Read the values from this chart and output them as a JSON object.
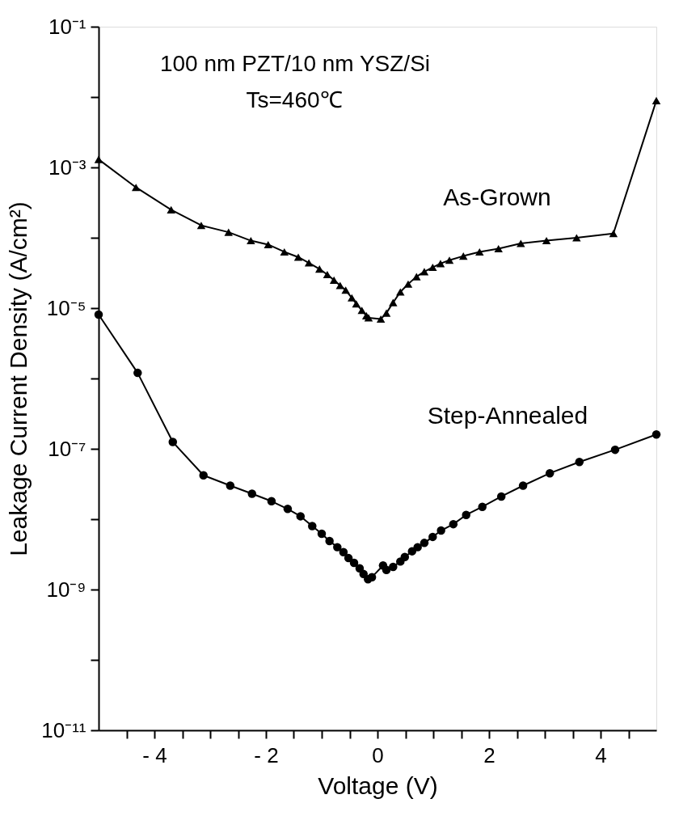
{
  "chart_data": {
    "type": "line",
    "xlabel": "Voltage  (V)",
    "ylabel": "Leakage  Current  Density  (A/cm²)",
    "annotations": [
      "100 nm PZT/10 nm YSZ/Si",
      "Ts=460℃"
    ],
    "log": "y",
    "grid": false,
    "legend": false,
    "line_style": "solid",
    "xlim": [
      -5,
      5
    ],
    "xticks": [
      {
        "value": -4.5,
        "label": null
      },
      {
        "value": -4,
        "label": "- 4"
      },
      {
        "value": -3.5,
        "label": null
      },
      {
        "value": -3,
        "label": null
      },
      {
        "value": -2.5,
        "label": null
      },
      {
        "value": -2,
        "label": "- 2"
      },
      {
        "value": -1.5,
        "label": null
      },
      {
        "value": -1,
        "label": null
      },
      {
        "value": -0.5,
        "label": null
      },
      0,
      {
        "value": 0.5,
        "label": null
      },
      {
        "value": 1,
        "label": null
      },
      {
        "value": 1.5,
        "label": null
      },
      2,
      {
        "value": 2.5,
        "label": null
      },
      {
        "value": 3,
        "label": null
      },
      {
        "value": 3.5,
        "label": null
      },
      4,
      {
        "value": 4.5,
        "label": null
      }
    ],
    "ylim": [
      1e-11,
      0.1
    ],
    "yticks": [
      {
        "value": 1e-11,
        "label": "10⁻¹¹"
      },
      {
        "value": 1e-10,
        "label": null
      },
      {
        "value": 1e-09,
        "label": "10⁻⁹"
      },
      {
        "value": 1e-08,
        "label": null
      },
      {
        "value": 1e-07,
        "label": "10⁻⁷"
      },
      {
        "value": 1e-06,
        "label": null
      },
      {
        "value": 1e-05,
        "label": "10⁻⁵"
      },
      {
        "value": 0.0001,
        "label": null
      },
      {
        "value": 0.001,
        "label": "10⁻³"
      },
      {
        "value": 0.01,
        "label": null
      },
      {
        "value": 0.1,
        "label": "10⁻¹"
      }
    ],
    "series": [
      {
        "name": "As-Grown",
        "color": "#000000",
        "marker": "triangle",
        "x": [
          -5,
          -4.33,
          -3.7,
          -3.16,
          -2.67,
          -2.27,
          -1.96,
          -1.67,
          -1.42,
          -1.23,
          -1.04,
          -0.9,
          -0.78,
          -0.67,
          -0.57,
          -0.46,
          -0.38,
          -0.28,
          -0.2,
          -0.16,
          0.06,
          0.16,
          0.28,
          0.41,
          0.55,
          0.7,
          0.84,
          0.99,
          1.13,
          1.29,
          1.54,
          1.83,
          2.17,
          2.57,
          3.03,
          3.57,
          4.23,
          5
        ],
        "values": [
          0.0013,
          0.00052,
          0.00025,
          0.00015,
          0.00012,
          9.1e-05,
          8e-05,
          6.3e-05,
          5.3e-05,
          4.4e-05,
          3.6e-05,
          3e-05,
          2.5e-05,
          2.1e-05,
          1.8e-05,
          1.4e-05,
          1.15e-05,
          9.3e-06,
          7.8e-06,
          7.3e-06,
          7e-06,
          8.5e-06,
          1.2e-05,
          1.7e-05,
          2.2e-05,
          2.8e-05,
          3.3e-05,
          3.8e-05,
          4.3e-05,
          4.8e-05,
          5.5e-05,
          6.3e-05,
          7e-05,
          8.3e-05,
          9.1e-05,
          0.0001,
          0.000115,
          0.0089
        ]
      },
      {
        "name": "Step-Annealed",
        "color": "#000000",
        "marker": "circle",
        "x": [
          -5,
          -4.3,
          -3.67,
          -3.12,
          -2.64,
          -2.25,
          -1.9,
          -1.61,
          -1.38,
          -1.17,
          -1.0,
          -0.86,
          -0.72,
          -0.61,
          -0.52,
          -0.42,
          -0.32,
          -0.25,
          -0.17,
          -0.1,
          0.1,
          0.16,
          0.28,
          0.41,
          0.49,
          0.62,
          0.72,
          0.84,
          0.99,
          1.14,
          1.36,
          1.59,
          1.88,
          2.22,
          2.61,
          3.09,
          3.62,
          4.26,
          5
        ],
        "values": [
          8.1e-06,
          1.2e-06,
          1.25e-07,
          4.2e-08,
          3e-08,
          2.3e-08,
          1.8e-08,
          1.4e-08,
          1.1e-08,
          8e-09,
          6.2e-09,
          4.9e-09,
          4e-09,
          3.4e-09,
          2.8e-09,
          2.4e-09,
          2e-09,
          1.66e-09,
          1.4e-09,
          1.5e-09,
          2.2e-09,
          1.9e-09,
          2.1e-09,
          2.5e-09,
          2.9e-09,
          3.5e-09,
          4e-09,
          4.6e-09,
          5.6e-09,
          6.9e-09,
          8.5e-09,
          1.15e-08,
          1.5e-08,
          2.1e-08,
          3e-08,
          4.5e-08,
          6.5e-08,
          9.7e-08,
          1.6e-07
        ]
      }
    ]
  }
}
